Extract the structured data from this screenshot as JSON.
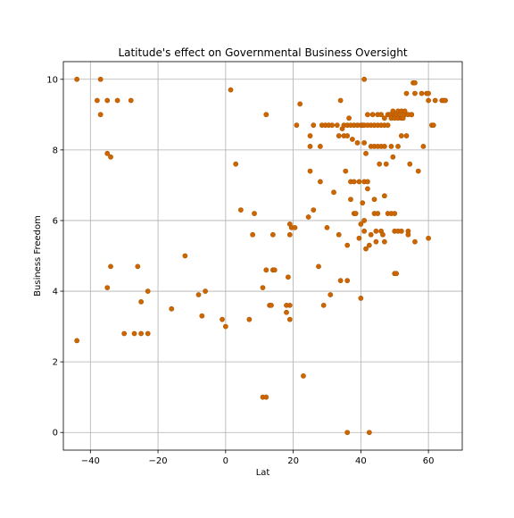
{
  "chart_data": {
    "type": "scatter",
    "title": "Latitude's effect on Governmental Business Oversight",
    "xlabel": "Lat",
    "ylabel": "Business Freedom",
    "xlim": [
      -48,
      70
    ],
    "ylim": [
      -0.5,
      10.5
    ],
    "xticks": [
      -40,
      -20,
      0,
      20,
      40,
      60
    ],
    "yticks": [
      0,
      2,
      4,
      6,
      8,
      10
    ],
    "xtick_labels": [
      "−40",
      "−20",
      "0",
      "20",
      "40",
      "60"
    ],
    "ytick_labels": [
      "0",
      "2",
      "4",
      "6",
      "8",
      "10"
    ],
    "grid": true,
    "marker_color": "#cc6600",
    "marker_edge_color": "#b35900",
    "points": [
      [
        -44,
        10
      ],
      [
        -44,
        2.6
      ],
      [
        -37,
        10
      ],
      [
        -38,
        9.4
      ],
      [
        -37,
        9
      ],
      [
        -35,
        9.4
      ],
      [
        -32,
        9.4
      ],
      [
        -28,
        9.4
      ],
      [
        -35,
        7.9
      ],
      [
        -34,
        7.8
      ],
      [
        -34,
        4.7
      ],
      [
        -35,
        4.1
      ],
      [
        -26,
        4.7
      ],
      [
        -25,
        3.7
      ],
      [
        -23,
        4.0
      ],
      [
        -30,
        2.8
      ],
      [
        -27,
        2.8
      ],
      [
        -25,
        2.8
      ],
      [
        -23,
        2.8
      ],
      [
        -16,
        3.5
      ],
      [
        -12,
        5.0
      ],
      [
        -8,
        3.9
      ],
      [
        -7,
        3.3
      ],
      [
        -6,
        4.0
      ],
      [
        -1,
        3.2
      ],
      [
        0,
        3.0
      ],
      [
        1.5,
        9.7
      ],
      [
        3,
        7.6
      ],
      [
        4.5,
        6.3
      ],
      [
        7,
        3.2
      ],
      [
        8,
        5.6
      ],
      [
        8.5,
        6.2
      ],
      [
        11,
        4.1
      ],
      [
        12,
        4.6
      ],
      [
        12,
        9.0
      ],
      [
        13,
        3.6
      ],
      [
        13.5,
        3.6
      ],
      [
        14,
        4.6
      ],
      [
        14.5,
        4.6
      ],
      [
        14,
        5.6
      ],
      [
        11,
        1.0
      ],
      [
        12,
        1.0
      ],
      [
        18,
        3.4
      ],
      [
        18,
        3.6
      ],
      [
        19,
        3.6
      ],
      [
        19,
        3.2
      ],
      [
        18.5,
        4.4
      ],
      [
        19,
        5.9
      ],
      [
        19,
        5.6
      ],
      [
        19.5,
        5.8
      ],
      [
        20.5,
        5.8
      ],
      [
        21,
        8.7
      ],
      [
        22,
        9.3
      ],
      [
        23,
        1.6
      ],
      [
        24.5,
        6.1
      ],
      [
        25,
        7.4
      ],
      [
        25,
        8.1
      ],
      [
        25,
        8.4
      ],
      [
        26,
        8.7
      ],
      [
        26,
        6.3
      ],
      [
        27.5,
        4.7
      ],
      [
        28,
        8.1
      ],
      [
        28,
        7.1
      ],
      [
        28.5,
        8.7
      ],
      [
        29,
        3.6
      ],
      [
        29.5,
        8.7
      ],
      [
        30,
        5.8
      ],
      [
        30.5,
        8.7
      ],
      [
        31,
        3.9
      ],
      [
        31.5,
        8.7
      ],
      [
        32,
        6.8
      ],
      [
        33,
        8.7
      ],
      [
        33.5,
        8.4
      ],
      [
        33.5,
        5.6
      ],
      [
        34,
        9.4
      ],
      [
        34,
        4.3
      ],
      [
        34.5,
        8.6
      ],
      [
        35,
        8.7
      ],
      [
        35,
        8.4
      ],
      [
        35.5,
        7.4
      ],
      [
        36,
        8.7
      ],
      [
        36,
        8.4
      ],
      [
        36,
        4.3
      ],
      [
        36,
        5.3
      ],
      [
        36,
        0
      ],
      [
        36.5,
        8.9
      ],
      [
        37,
        8.7
      ],
      [
        37,
        7.1
      ],
      [
        37,
        6.6
      ],
      [
        37.5,
        8.3
      ],
      [
        38,
        8.7
      ],
      [
        38,
        7.1
      ],
      [
        38,
        6.2
      ],
      [
        38.5,
        6.2
      ],
      [
        39,
        8.2
      ],
      [
        39,
        8.7
      ],
      [
        39.5,
        7.1
      ],
      [
        39.5,
        5.5
      ],
      [
        40,
        8.7
      ],
      [
        40,
        5.9
      ],
      [
        40,
        3.8
      ],
      [
        40.5,
        8.7
      ],
      [
        40.5,
        6.5
      ],
      [
        41,
        8.7
      ],
      [
        41,
        8.2
      ],
      [
        41,
        7.1
      ],
      [
        41,
        6.0
      ],
      [
        41,
        5.7
      ],
      [
        41,
        10.0
      ],
      [
        41.5,
        7.9
      ],
      [
        41.5,
        5.2
      ],
      [
        42,
        8.7
      ],
      [
        42,
        9.0
      ],
      [
        42,
        6.9
      ],
      [
        42,
        7.1
      ],
      [
        42.5,
        0
      ],
      [
        42.5,
        5.3
      ],
      [
        43,
        8.7
      ],
      [
        43,
        8.1
      ],
      [
        43,
        5.6
      ],
      [
        43.5,
        9.0
      ],
      [
        44,
        8.7
      ],
      [
        44,
        8.1
      ],
      [
        44,
        6.6
      ],
      [
        44,
        6.2
      ],
      [
        44.5,
        5.7
      ],
      [
        44.5,
        5.4
      ],
      [
        45,
        9.0
      ],
      [
        45,
        8.7
      ],
      [
        45,
        8.1
      ],
      [
        45,
        6.2
      ],
      [
        45.5,
        7.6
      ],
      [
        46,
        9.0
      ],
      [
        46,
        8.7
      ],
      [
        46,
        8.1
      ],
      [
        46,
        5.7
      ],
      [
        46.5,
        5.6
      ],
      [
        47,
        8.9
      ],
      [
        47,
        8.7
      ],
      [
        47,
        8.1
      ],
      [
        47,
        6.7
      ],
      [
        47,
        5.4
      ],
      [
        47.5,
        7.6
      ],
      [
        48,
        9.0
      ],
      [
        48,
        8.7
      ],
      [
        48,
        6.2
      ],
      [
        48.5,
        9.0
      ],
      [
        49,
        9.0
      ],
      [
        49,
        8.9
      ],
      [
        49,
        8.1
      ],
      [
        49,
        6.2
      ],
      [
        49.5,
        9.1
      ],
      [
        49.5,
        7.8
      ],
      [
        50,
        9.0
      ],
      [
        50,
        8.9
      ],
      [
        50,
        6.2
      ],
      [
        50,
        5.7
      ],
      [
        50,
        4.5
      ],
      [
        50.5,
        9.0
      ],
      [
        50.5,
        4.5
      ],
      [
        51,
        9.1
      ],
      [
        51,
        8.9
      ],
      [
        51,
        8.1
      ],
      [
        51,
        5.7
      ],
      [
        51.5,
        9.0
      ],
      [
        52,
        9.1
      ],
      [
        52,
        8.9
      ],
      [
        52,
        8.4
      ],
      [
        52,
        5.7
      ],
      [
        52.5,
        8.9
      ],
      [
        53,
        9.0
      ],
      [
        53,
        9.1
      ],
      [
        53.5,
        9.6
      ],
      [
        53.5,
        8.4
      ],
      [
        54,
        9.0
      ],
      [
        54,
        5.7
      ],
      [
        54,
        5.6
      ],
      [
        54.5,
        7.6
      ],
      [
        55,
        9.0
      ],
      [
        55,
        9.0
      ],
      [
        55.5,
        9.9
      ],
      [
        56,
        9.9
      ],
      [
        56,
        9.6
      ],
      [
        56,
        5.4
      ],
      [
        57,
        7.4
      ],
      [
        58,
        9.6
      ],
      [
        58.5,
        8.1
      ],
      [
        59.5,
        9.6
      ],
      [
        60,
        9.6
      ],
      [
        60,
        9.4
      ],
      [
        60,
        5.5
      ],
      [
        61,
        8.7
      ],
      [
        61.5,
        8.7
      ],
      [
        62,
        9.4
      ],
      [
        64,
        9.4
      ],
      [
        64.5,
        9.4
      ],
      [
        65,
        9.4
      ]
    ]
  }
}
